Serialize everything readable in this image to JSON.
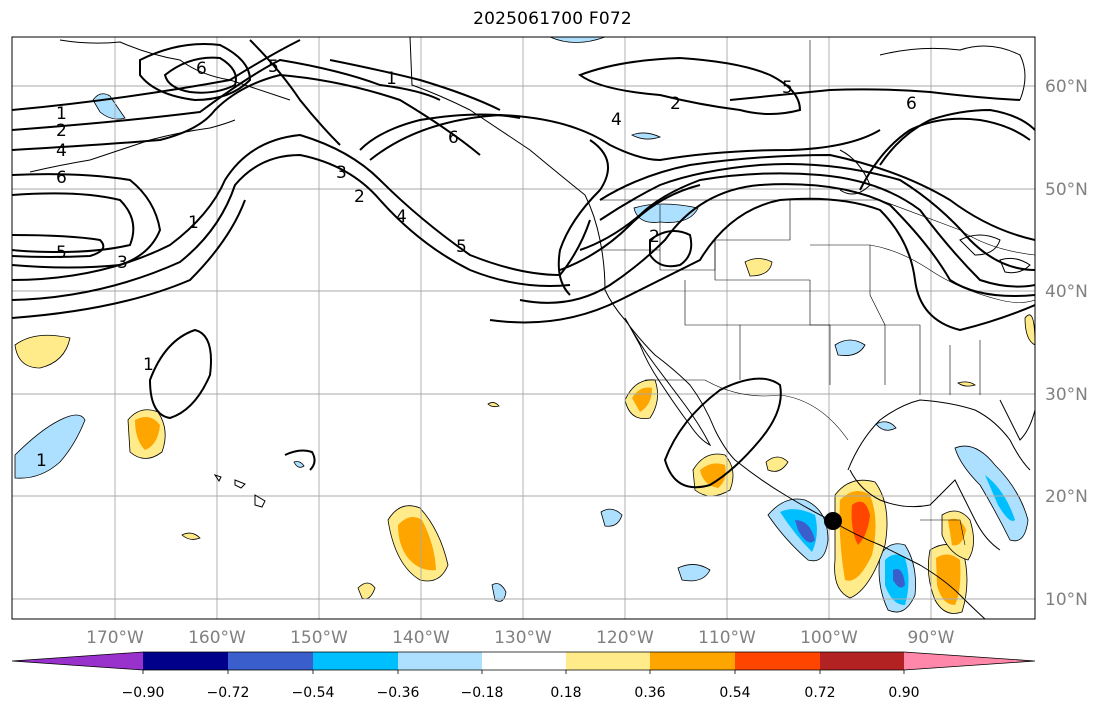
{
  "title": "2025061700 F072",
  "lon_labels": [
    "170°W",
    "160°W",
    "150°W",
    "140°W",
    "130°W",
    "120°W",
    "110°W",
    "100°W",
    "90°W"
  ],
  "lat_labels": [
    "60°N",
    "50°N",
    "40°N",
    "30°N",
    "20°N",
    "10°N"
  ],
  "contour_labels": [
    "1",
    "2",
    "4",
    "6",
    "5",
    "3",
    "1",
    "6",
    "5",
    "3",
    "2",
    "4",
    "5",
    "6",
    "4",
    "2",
    "5",
    "6",
    "2",
    "1",
    "1",
    "1"
  ],
  "colorbar": {
    "ticks": [
      "−0.90",
      "−0.72",
      "−0.54",
      "−0.36",
      "−0.18",
      "0.18",
      "0.36",
      "0.54",
      "0.72",
      "0.90"
    ],
    "colors": [
      "#9932CC",
      "#00008B",
      "#3A5FCD",
      "#00BFFF",
      "#ADDFFF",
      "#FFFFFF",
      "#FFEB8A",
      "#FFA500",
      "#FF4500",
      "#B22222",
      "#FF88AA"
    ]
  }
}
